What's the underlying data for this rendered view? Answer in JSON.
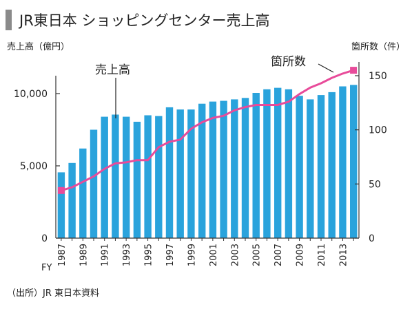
{
  "chart_data": {
    "type": "bar+line",
    "title": "JR東日本 ショッピングセンター売上高",
    "left_axis_label": "売上高（億円）",
    "right_axis_label": "箇所数（件）",
    "x_prefix": "FY",
    "x": [
      1987,
      1988,
      1989,
      1990,
      1991,
      1992,
      1993,
      1994,
      1995,
      1996,
      1997,
      1998,
      1999,
      2000,
      2001,
      2002,
      2003,
      2004,
      2005,
      2006,
      2007,
      2008,
      2009,
      2010,
      2011,
      2012,
      2013,
      2014
    ],
    "x_tick_labels": [
      "1987",
      "1989",
      "1991",
      "1993",
      "1995",
      "1997",
      "1999",
      "2001",
      "2003",
      "2005",
      "2007",
      "2009",
      "2011",
      "2013"
    ],
    "series": [
      {
        "name": "売上高",
        "type": "bar",
        "axis": "left",
        "color": "#2aa3dc",
        "values": [
          4550,
          5200,
          6200,
          7500,
          8400,
          8550,
          8400,
          8050,
          8500,
          8450,
          9050,
          8900,
          8900,
          9300,
          9450,
          9500,
          9600,
          9700,
          10050,
          10300,
          10400,
          10300,
          9850,
          9600,
          9900,
          10100,
          10500,
          10600
        ]
      },
      {
        "name": "箇所数",
        "type": "line",
        "axis": "right",
        "color": "#e84b9a",
        "values": [
          44,
          47,
          52,
          57,
          64,
          69,
          70,
          72,
          72,
          84,
          89,
          91,
          101,
          107,
          111,
          113,
          118,
          121,
          123,
          123,
          123,
          126,
          133,
          139,
          143,
          148,
          152,
          155
        ]
      }
    ],
    "left_axis": {
      "min": 0,
      "max": 10000,
      "ticks": [
        "0",
        "5,000",
        "10,000"
      ],
      "tick_values": [
        0,
        5000,
        10000
      ]
    },
    "right_axis": {
      "min": 0,
      "max": 150,
      "ticks": [
        "0",
        "50",
        "100",
        "150"
      ],
      "tick_values": [
        0,
        50,
        100,
        150
      ]
    },
    "grid": false,
    "source": "（出所）JR 東日本資料",
    "title_marker_color": "#8a8a8a"
  }
}
